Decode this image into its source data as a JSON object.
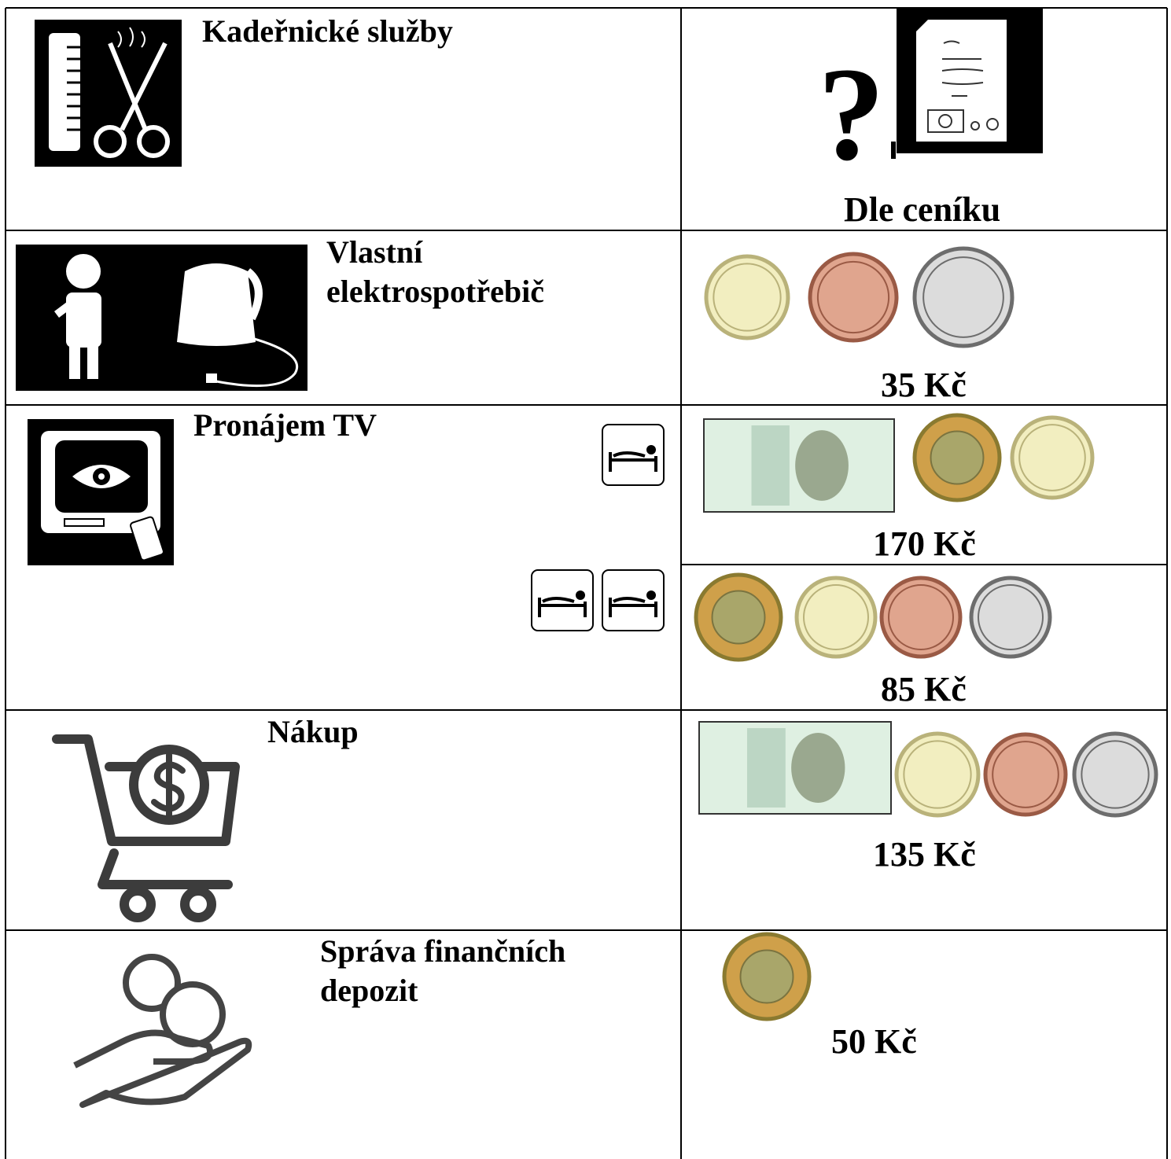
{
  "rows": [
    {
      "service_lines": [
        "Kadeřnické služby"
      ],
      "price_symbol": "?",
      "prices": [
        "Dle ceníku"
      ]
    },
    {
      "service_lines": [
        "Vlastní",
        "elektrospotřebič"
      ],
      "prices": [
        "35 Kč"
      ]
    },
    {
      "service_lines": [
        "Pronájem TV"
      ],
      "prices": [
        "170 Kč",
        "85 Kč"
      ]
    },
    {
      "service_lines": [
        "Nákup"
      ],
      "prices": [
        "135 Kč"
      ]
    },
    {
      "service_lines": [
        "Správa finančních",
        "depozit"
      ],
      "prices": [
        "50 Kč"
      ]
    }
  ]
}
